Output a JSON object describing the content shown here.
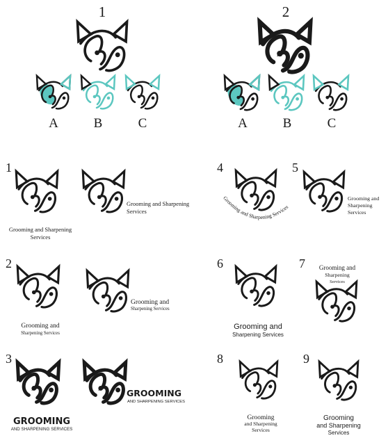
{
  "colors": {
    "ink": "#1a1a1a",
    "teal": "#5cc7c0"
  },
  "tagline": "Grooming and Sharpening Services",
  "top": {
    "set1": {
      "label": "1",
      "variants": [
        "A",
        "B",
        "C"
      ]
    },
    "set2": {
      "label": "2",
      "variants": [
        "A",
        "B",
        "C"
      ]
    }
  },
  "layouts": {
    "l1": {
      "num": "1",
      "text": "Grooming and Sharpening Services",
      "text_a": "Grooming and Sharpening",
      "text_b": "Services"
    },
    "l2": {
      "num": "2",
      "line1": "Grooming and",
      "line2": "Sharpening Services"
    },
    "l3": {
      "num": "3",
      "line1": "GROOMING",
      "line2": "AND SHARPENING SERVICES"
    },
    "l4": {
      "num": "4",
      "text": "Grooming and Sharpening Services"
    },
    "l5": {
      "num": "5",
      "line1": "Grooming and",
      "line2": "Sharpening",
      "line3": "Services"
    },
    "l6": {
      "num": "6",
      "line1": "Grooming and",
      "line2": "Sharpening Services"
    },
    "l7": {
      "num": "7",
      "line1": "Grooming and",
      "line2": "Sharpening",
      "line3": "Services"
    },
    "l8": {
      "num": "8",
      "line1": "Grooming",
      "line2": "and Sharpening",
      "line3": "Services"
    },
    "l9": {
      "num": "9",
      "line1": "Grooming",
      "line2": "and Sharpening",
      "line3": "Services"
    }
  }
}
